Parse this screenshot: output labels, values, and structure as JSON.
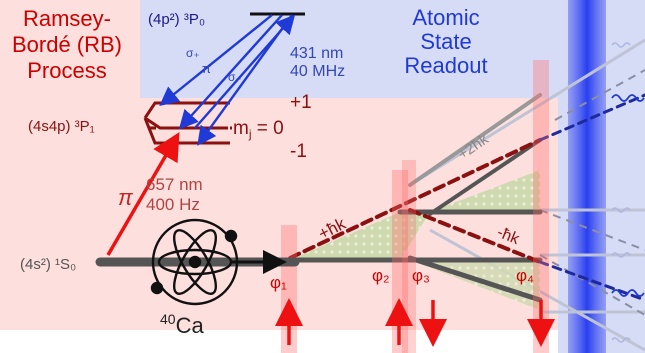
{
  "process_title": {
    "line1": "Ramsey-",
    "line2": "Bordé  (RB)",
    "line3": "Process"
  },
  "readout_title": {
    "line1": "Atomic",
    "line2": "State",
    "line3": "Readout"
  },
  "levels": {
    "upper": "(4p²) ³P₀",
    "middle": "(4s4p) ³P₁",
    "ground": "(4s²) ¹S₀"
  },
  "mj": {
    "label": "m",
    "sub": "j",
    "eq": " = 0",
    "plus": "+1",
    "minus": "-1"
  },
  "transition_431": {
    "wavelength": "431 nm",
    "linewidth": "40 MHz"
  },
  "transition_657": {
    "wavelength": "657 nm",
    "linewidth": "400 Hz",
    "pol": "π"
  },
  "polarizations": {
    "sigma_plus": "σ₊",
    "pi": "π",
    "sigma_minus": "σ₋"
  },
  "momentum": {
    "plus1": "+ħk",
    "plus2": "+2ħk",
    "minus1": "-ħk"
  },
  "phases": [
    "φ₁",
    "φ₂",
    "φ₃",
    "φ₄"
  ],
  "atom": {
    "mass": "40",
    "symbol": "Ca"
  },
  "colors": {
    "ramsey_bg": "#fde0dd",
    "readout_bg": "#d7dcf6",
    "red": "#cc0000",
    "dark_red": "#8b0d0d",
    "blue": "#1f3ad6",
    "gray": "#555555"
  }
}
